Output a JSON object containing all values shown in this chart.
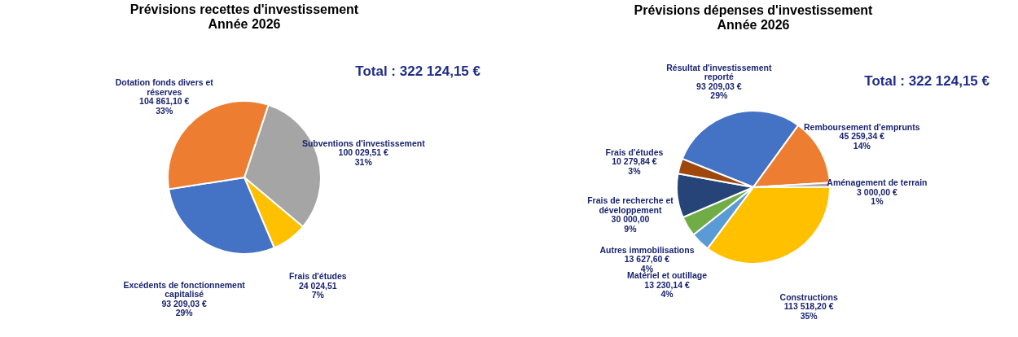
{
  "chart_data": [
    {
      "type": "pie",
      "title": "Prévisions recettes d'investissement",
      "subtitle": "Année 2026",
      "categories": [
        "Subventions d'investissement",
        "Frais d'études",
        "Excédents de fonctionnement capitalisé",
        "Dotation fonds divers et réserves"
      ],
      "values": [
        100029.51,
        24024.51,
        93209.03,
        104861.1
      ],
      "colors": [
        "#a5a5a5",
        "#ffc000",
        "#4472c4",
        "#ed7d31"
      ],
      "value_labels": [
        "100 029,51 €\n31%",
        "24 024,51\n7%",
        "93 209,03 €\n29%",
        "104 861,10 €\n33%"
      ],
      "annotations": [
        "Total : 322 124,15 €"
      ]
    },
    {
      "type": "pie",
      "title": "Prévisions dépenses d'investissement",
      "subtitle": "Année 2026",
      "categories": [
        "Résultat d'investissement reporté",
        "Remboursement d'emprunts",
        "Aménagement de terrain",
        "Constructions",
        "Matériel et outillage",
        "Autres immobilisations",
        "Frais de recherche et développement",
        "Frais d'études"
      ],
      "values": [
        93209.03,
        45259.34,
        3000.0,
        113518.2,
        13230.14,
        13627.6,
        30000.0,
        10279.84
      ],
      "colors": [
        "#4472c4",
        "#ed7d31",
        "#a5a5a5",
        "#ffc000",
        "#5b9bd5",
        "#70ad47",
        "#264478",
        "#9e480e"
      ],
      "value_labels": [
        "93 209,03 €\n29%",
        "45 259,34 €\n14%",
        "3 000,00 €\n1%",
        "113 518,20 €\n35%",
        "13 230,14 €\n4%",
        "13 627,60 €\n4%",
        "30 000,00\n9%",
        "10 279,84 €\n3%"
      ],
      "annotations": [
        "Total : 322 124,15 €"
      ]
    }
  ]
}
